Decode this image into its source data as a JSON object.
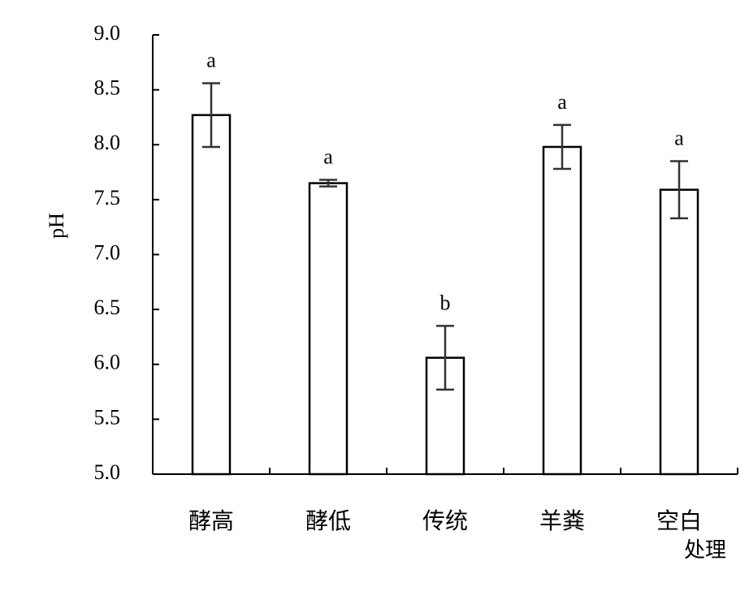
{
  "chart_data": {
    "type": "bar",
    "x_label": "处理",
    "y_label": "pH",
    "categories": [
      "酵高",
      "酵低",
      "传统",
      "羊粪",
      "空白"
    ],
    "values": [
      8.27,
      7.65,
      6.06,
      7.98,
      7.59
    ],
    "errors": [
      0.29,
      0.03,
      0.29,
      0.2,
      0.26
    ],
    "letters": [
      "a",
      "a",
      "b",
      "a",
      "a"
    ],
    "color": "#ffffff",
    "ylim": [
      5,
      9
    ],
    "yticks": [
      {
        "value": 5,
        "label": "5.0"
      },
      {
        "value": 5.5,
        "label": "5.5"
      },
      {
        "value": 6,
        "label": "6.0"
      },
      {
        "value": 6.5,
        "label": "6.5"
      },
      {
        "value": 7,
        "label": "7.0"
      },
      {
        "value": 7.5,
        "label": "7.5"
      },
      {
        "value": 8,
        "label": "8.0"
      },
      {
        "value": 8.5,
        "label": "8.5"
      },
      {
        "value": 9,
        "label": "9.0"
      }
    ]
  }
}
